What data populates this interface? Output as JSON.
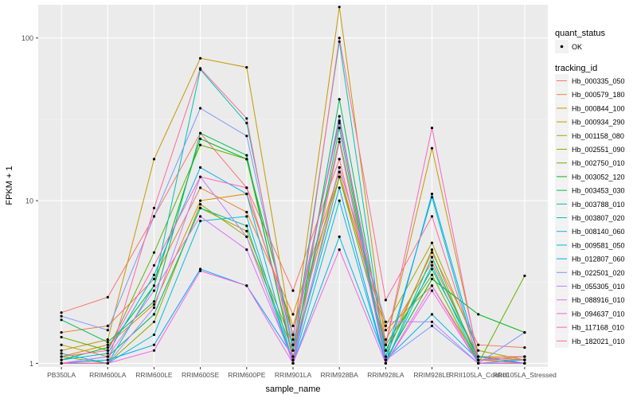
{
  "chart_data": {
    "type": "line",
    "xlabel": "sample_name",
    "ylabel": "FPKM + 1",
    "y_scale": "log10",
    "ylim": [
      0.95,
      160
    ],
    "y_ticks": [
      1,
      10,
      100
    ],
    "grid": true,
    "legend_position": "right",
    "categories": [
      "PB350LA",
      "RRIM600LA",
      "RRIM600LE",
      "RRIM600SE",
      "RRIM600PE",
      "RRIM901LA",
      "RRIM928BA",
      "RRIM928LA",
      "RRIM928LE",
      "RRII105LA_Control",
      "RRII105LA_Stressed"
    ],
    "legends": {
      "quant_status": {
        "title": "quant_status",
        "entries": [
          "OK"
        ]
      },
      "tracking_id": {
        "title": "tracking_id"
      }
    },
    "series": [
      {
        "name": "Hb_000335_050",
        "color": "#F8766D",
        "values": [
          2.05,
          2.55,
          8.0,
          26.0,
          12.0,
          2.8,
          18.0,
          1.2,
          4.8,
          1.3,
          1.25
        ]
      },
      {
        "name": "Hb_000579_180",
        "color": "#EC8239",
        "values": [
          1.55,
          1.7,
          3.3,
          12.0,
          8.5,
          2.0,
          15.0,
          1.4,
          4.2,
          1.1,
          1.1
        ]
      },
      {
        "name": "Hb_000844_100",
        "color": "#DB8E00",
        "values": [
          1.1,
          1.3,
          2.3,
          10.0,
          11.0,
          1.7,
          14.0,
          1.6,
          3.0,
          1.05,
          1.0
        ]
      },
      {
        "name": "Hb_000934_290",
        "color": "#C79800",
        "values": [
          1.2,
          1.4,
          18.0,
          75.0,
          66.0,
          1.4,
          155.0,
          1.3,
          21.0,
          1.1,
          1.05
        ]
      },
      {
        "name": "Hb_001158_080",
        "color": "#AEA200",
        "values": [
          1.3,
          1.1,
          2.0,
          9.0,
          6.5,
          1.3,
          16.0,
          1.7,
          5.5,
          1.2,
          1.05
        ]
      },
      {
        "name": "Hb_002551_090",
        "color": "#8FAA00",
        "values": [
          1.1,
          1.0,
          1.8,
          9.5,
          6.0,
          1.2,
          24.0,
          1.1,
          5.0,
          1.0,
          1.0
        ]
      },
      {
        "name": "Hb_002750_010",
        "color": "#64B200",
        "values": [
          1.45,
          1.2,
          4.8,
          22.0,
          18.0,
          1.1,
          14.0,
          1.3,
          3.5,
          1.0,
          3.45
        ]
      },
      {
        "name": "Hb_003052_120",
        "color": "#00B81B",
        "values": [
          1.05,
          1.25,
          3.0,
          24.0,
          18.0,
          1.5,
          31.0,
          1.05,
          3.3,
          2.0,
          1.55
        ]
      },
      {
        "name": "Hb_003453_030",
        "color": "#00BD5C",
        "values": [
          1.85,
          1.35,
          2.4,
          26.0,
          19.0,
          1.05,
          42.0,
          1.2,
          3.8,
          1.1,
          1.0
        ]
      },
      {
        "name": "Hb_003788_010",
        "color": "#00C08E",
        "values": [
          1.0,
          1.1,
          2.0,
          9.0,
          7.0,
          1.0,
          28.0,
          1.0,
          4.5,
          1.05,
          1.1
        ]
      },
      {
        "name": "Hb_003807_020",
        "color": "#00C1B7",
        "values": [
          1.15,
          1.0,
          3.0,
          64.0,
          30.0,
          1.2,
          95.0,
          1.1,
          10.5,
          1.0,
          1.0
        ]
      },
      {
        "name": "Hb_008140_060",
        "color": "#00BDDC",
        "values": [
          1.0,
          1.0,
          1.5,
          7.5,
          8.0,
          1.0,
          10.0,
          1.0,
          4.0,
          1.0,
          1.05
        ]
      },
      {
        "name": "Hb_009581_050",
        "color": "#00B4EF",
        "values": [
          1.05,
          1.15,
          3.5,
          16.0,
          11.0,
          1.0,
          6.0,
          1.05,
          2.0,
          1.05,
          1.05
        ]
      },
      {
        "name": "Hb_012807_060",
        "color": "#00A5FF",
        "values": [
          1.0,
          1.05,
          1.3,
          3.8,
          3.0,
          1.1,
          12.0,
          1.0,
          11.0,
          1.1,
          1.0
        ]
      },
      {
        "name": "Hb_022501_020",
        "color": "#7F96FF",
        "values": [
          1.95,
          1.6,
          8.0,
          37.0,
          25.0,
          1.3,
          33.0,
          1.05,
          1.7,
          1.0,
          1.55
        ]
      },
      {
        "name": "Hb_055305_010",
        "color": "#BC81FF",
        "values": [
          1.0,
          1.0,
          2.2,
          14.0,
          6.0,
          1.0,
          16.0,
          1.8,
          1.8,
          1.0,
          1.0
        ]
      },
      {
        "name": "Hb_088916_010",
        "color": "#E26EF7",
        "values": [
          1.0,
          1.1,
          2.8,
          8.0,
          5.0,
          1.05,
          23.0,
          1.0,
          3.0,
          1.0,
          1.0
        ]
      },
      {
        "name": "Hb_094637_010",
        "color": "#F863DF",
        "values": [
          1.0,
          1.0,
          1.2,
          3.7,
          3.0,
          1.0,
          5.0,
          1.0,
          2.8,
          1.0,
          1.0
        ]
      },
      {
        "name": "Hb_117168_010",
        "color": "#FF62BC",
        "values": [
          1.1,
          1.2,
          4.0,
          14.0,
          12.0,
          1.5,
          30.0,
          1.3,
          28.0,
          1.05,
          1.05
        ]
      },
      {
        "name": "Hb_182021_010",
        "color": "#FF6A98",
        "values": [
          1.0,
          1.0,
          9.0,
          65.0,
          32.0,
          1.05,
          100.0,
          2.45,
          8.0,
          1.05,
          1.1
        ]
      }
    ]
  }
}
